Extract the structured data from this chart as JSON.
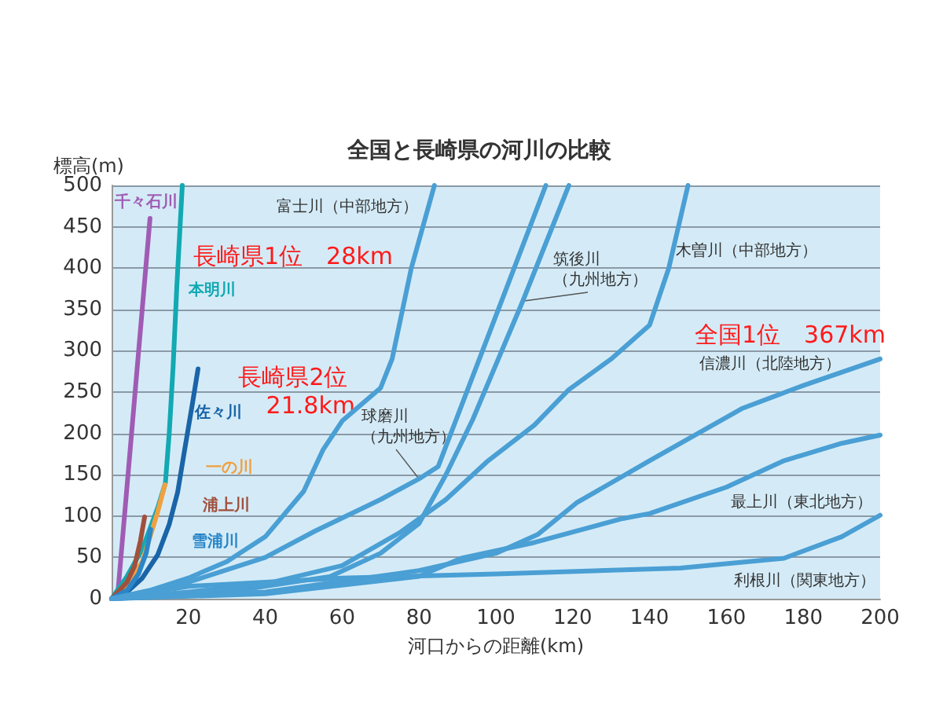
{
  "chart_data": {
    "type": "line",
    "title": "全国と長崎県の河川の比較",
    "xlabel": "河口からの距離(km)",
    "ylabel": "標高(m)",
    "xlim": [
      0,
      200
    ],
    "xticks": [
      20,
      40,
      60,
      80,
      100,
      120,
      140,
      160,
      180,
      200
    ],
    "ylim": [
      0,
      500
    ],
    "yticks": [
      0,
      50,
      100,
      150,
      200,
      250,
      300,
      350,
      400,
      450,
      500
    ],
    "grid": "y",
    "marker": "none",
    "line_style": "solid",
    "series": [
      {
        "name": "千々石川",
        "color": "#a05cb4",
        "x": [
          0,
          1.6,
          10
        ],
        "values": [
          0,
          5,
          460
        ]
      },
      {
        "name": "本明川",
        "color": "#12a9b2",
        "x": [
          0,
          4,
          8,
          12,
          14,
          15,
          16,
          17,
          18.4
        ],
        "values": [
          0,
          27,
          60,
          110,
          140,
          200,
          280,
          380,
          500
        ]
      },
      {
        "name": "佐々川",
        "color": "#1a64a8",
        "x": [
          0,
          4,
          8,
          12,
          15,
          17.2,
          19,
          21,
          22.5
        ],
        "values": [
          0,
          8,
          25,
          53,
          90,
          129,
          180,
          235,
          278
        ]
      },
      {
        "name": "一の川",
        "color": "#f0a040",
        "x": [
          0,
          4,
          8,
          10,
          12,
          13.9
        ],
        "values": [
          0,
          15,
          45,
          75,
          105,
          138
        ]
      },
      {
        "name": "浦上川",
        "color": "#a0503c",
        "x": [
          0,
          4,
          6,
          7.5,
          8.6
        ],
        "values": [
          0,
          20,
          40,
          70,
          99
        ]
      },
      {
        "name": "雪浦川",
        "color": "#2a86c8",
        "x": [
          0,
          4,
          7,
          9,
          10.2
        ],
        "values": [
          0,
          10,
          30,
          55,
          84
        ]
      },
      {
        "name": "富士川（中部地方）",
        "color": "#4a9fd4",
        "x": [
          0,
          10,
          20,
          30,
          40,
          50,
          55,
          60,
          65,
          70,
          73,
          78,
          84
        ],
        "values": [
          0,
          10,
          25,
          45,
          75,
          130,
          180,
          215,
          235,
          255,
          290,
          400,
          500
        ]
      },
      {
        "name": "球磨川（九州地方）",
        "color": "#4a9fd4",
        "x": [
          0,
          20,
          40,
          53,
          70,
          80,
          85,
          99,
          113
        ],
        "values": [
          0,
          20,
          50,
          82,
          120,
          145,
          160,
          330,
          500
        ]
      },
      {
        "name": "筑後川（九州地方）",
        "color": "#4a9fd4",
        "x": [
          0,
          30,
          57,
          70,
          80,
          87,
          94,
          107,
          119
        ],
        "values": [
          0,
          8,
          27,
          55,
          91,
          150,
          217,
          360,
          500
        ]
      },
      {
        "name": "木曽川（中部地方）",
        "color": "#4a9fd4",
        "x": [
          0,
          20,
          40,
          60,
          75,
          87,
          98,
          110,
          119,
          130,
          140,
          145,
          150
        ],
        "values": [
          0,
          8,
          18,
          40,
          80,
          120,
          167,
          210,
          253,
          290,
          331,
          400,
          500
        ]
      },
      {
        "name": "信濃川（北陸地方）",
        "color": "#4a9fd4",
        "x": [
          0,
          40,
          80,
          100,
          111,
          121,
          140,
          164,
          180,
          200
        ],
        "values": [
          0,
          8,
          34,
          55,
          78,
          116,
          167,
          230,
          258,
          290
        ]
      },
      {
        "name": "最上川（東北地方）",
        "color": "#4a9fd4",
        "x": [
          0,
          40,
          80,
          91,
          110,
          133,
          140,
          160,
          175,
          190,
          200
        ],
        "values": [
          0,
          6,
          27,
          49,
          68,
          97,
          103,
          135,
          167,
          188,
          198
        ]
      },
      {
        "name": "利根川（関東地方）",
        "color": "#4a9fd4",
        "x": [
          0,
          20,
          60,
          100,
          148,
          175,
          190,
          200
        ],
        "values": [
          0,
          15,
          25,
          30,
          37,
          49,
          75,
          101
        ]
      }
    ],
    "annotations": [
      "長崎県1位　28km",
      "長崎県2位 21.8km",
      "全国1位　367km"
    ]
  }
}
